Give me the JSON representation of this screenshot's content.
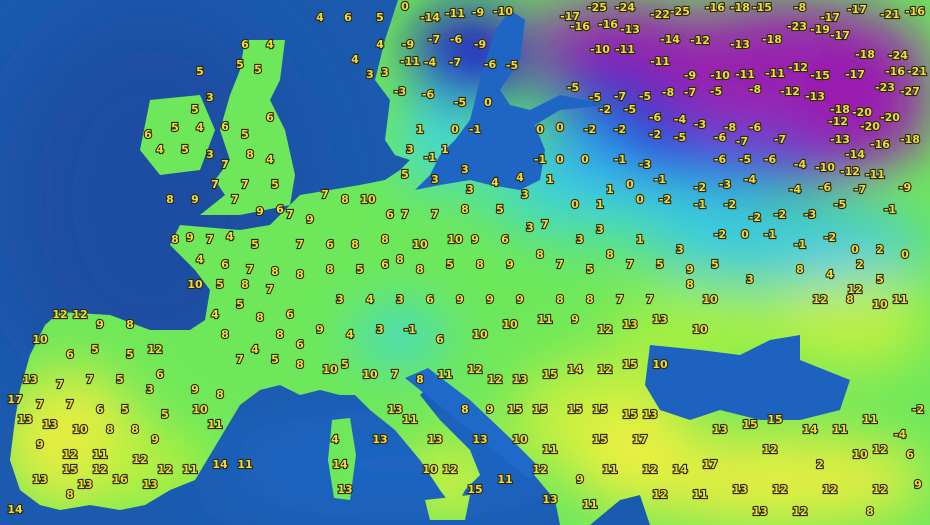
{
  "map": {
    "type": "temperature map",
    "region": "Europe",
    "colors": {
      "ocean": "#1b5aae",
      "land_mild": "#6ee85a",
      "land_warm": "#e8f040",
      "land_cool": "#40e0d0",
      "land_cold": "#3050e0",
      "land_very_cold": "#a020b0",
      "label": "#f2da3a"
    },
    "temperature_labels": {
      "scandinavia": [
        "4",
        "6",
        "5",
        "0",
        "-14",
        "-11",
        "-9",
        "-10",
        "-9",
        "-7",
        "-6",
        "-9",
        "-11",
        "-4",
        "-7",
        "-6",
        "-5",
        "-3",
        "-6",
        "-5",
        "0",
        "0",
        "-1",
        "1",
        "4",
        "4",
        "3",
        "3",
        "3",
        "-1",
        "1",
        "5",
        "3",
        "3",
        "3",
        "4",
        "4",
        "3"
      ],
      "russia": [
        "-17",
        "-25",
        "-24",
        "-22",
        "-25",
        "-16",
        "-18",
        "-15",
        "-8",
        "-17",
        "-17",
        "-21",
        "-16",
        "-16",
        "-16",
        "-13",
        "-14",
        "-12",
        "-13",
        "-18",
        "-23",
        "-19",
        "-17",
        "-18",
        "-24",
        "-10",
        "-11",
        "-11",
        "-9",
        "-10",
        "-11",
        "-11",
        "-12",
        "-15",
        "-17",
        "-16",
        "-21",
        "-23",
        "-27",
        "-5",
        "-5",
        "-7",
        "-5",
        "-8",
        "-7",
        "-5",
        "-8",
        "-12",
        "-13",
        "-18",
        "-20",
        "-20",
        "-12",
        "-20",
        "-13",
        "-14",
        "-16",
        "-18",
        "-2",
        "-5",
        "-6",
        "-4",
        "-3",
        "-8",
        "-6",
        "-7",
        "-6",
        "-7",
        "-6",
        "-4",
        "-10",
        "-12",
        "-11",
        "-6",
        "-5",
        "-5",
        "-2",
        "-2",
        "-2",
        "0",
        "0",
        "-2",
        "-3",
        "-4",
        "-4",
        "-6",
        "-7",
        "-9",
        "-5",
        "-1",
        "-3",
        "-2",
        "-2",
        "-2",
        "-1",
        "-2",
        "0",
        "1",
        "0",
        "1",
        "0",
        "1",
        "0",
        "0",
        "-1",
        "-1",
        "-3",
        "-1",
        "-1",
        "0",
        "-2",
        "-1",
        "-2",
        "0",
        "2",
        "0",
        "2",
        "4",
        "8",
        "5",
        "12",
        "12",
        "8",
        "10",
        "11"
      ],
      "british_isles": [
        "5",
        "6",
        "4",
        "5",
        "5",
        "3",
        "5",
        "6",
        "5",
        "4",
        "6",
        "5",
        "6",
        "4",
        "5",
        "3",
        "7",
        "8",
        "4",
        "7",
        "7",
        "5",
        "9",
        "7",
        "9",
        "6"
      ],
      "central_europe": [
        "8",
        "8",
        "9",
        "7",
        "4",
        "5",
        "4",
        "6",
        "7",
        "8",
        "10",
        "5",
        "8",
        "7",
        "8",
        "4",
        "5",
        "8",
        "6",
        "8",
        "4",
        "8",
        "6",
        "9",
        "7",
        "5",
        "8",
        "10",
        "7",
        "9",
        "7",
        "8",
        "10",
        "6",
        "7",
        "7",
        "7",
        "6",
        "8",
        "8",
        "8",
        "10",
        "10",
        "9",
        "6",
        "3",
        "7",
        "5",
        "8",
        "8",
        "5",
        "6",
        "8",
        "5",
        "8",
        "9",
        "8",
        "7",
        "5",
        "8",
        "7",
        "5",
        "9",
        "5",
        "3",
        "3",
        "3",
        "1",
        "3",
        "3",
        "4",
        "3",
        "6",
        "9",
        "9",
        "9",
        "8",
        "8",
        "7",
        "7",
        "8",
        "10",
        "4",
        "3",
        "-1",
        "6",
        "10",
        "10",
        "11",
        "9",
        "12",
        "13",
        "13",
        "10"
      ],
      "italy_balkans": [
        "5",
        "10",
        "7",
        "8",
        "11",
        "12",
        "12",
        "13",
        "15",
        "14",
        "12",
        "15",
        "10",
        "13",
        "13",
        "11",
        "13",
        "10",
        "12",
        "8",
        "9",
        "15",
        "15",
        "15",
        "15",
        "15",
        "13",
        "13",
        "10",
        "11",
        "15",
        "17",
        "15",
        "11",
        "12",
        "9",
        "11",
        "12",
        "14",
        "17",
        "12",
        "11",
        "11",
        "13"
      ],
      "turkey": [
        "13",
        "15",
        "15",
        "14",
        "11",
        "11",
        "12",
        "-4",
        "-2",
        "12",
        "2",
        "10",
        "6",
        "13",
        "12",
        "12",
        "12",
        "9",
        "13",
        "12",
        "8"
      ],
      "iberia": [
        "12",
        "12",
        "9",
        "8",
        "12",
        "10",
        "6",
        "5",
        "5",
        "6",
        "13",
        "7",
        "7",
        "5",
        "3",
        "9",
        "8",
        "17",
        "7",
        "7",
        "6",
        "5",
        "5",
        "10",
        "11",
        "13",
        "13",
        "10",
        "8",
        "8",
        "9",
        "9",
        "12",
        "11",
        "12",
        "15",
        "12",
        "12",
        "11",
        "13",
        "13",
        "16",
        "8",
        "13",
        "14",
        "14",
        "11"
      ],
      "islands": [
        "4",
        "14",
        "13"
      ]
    }
  }
}
